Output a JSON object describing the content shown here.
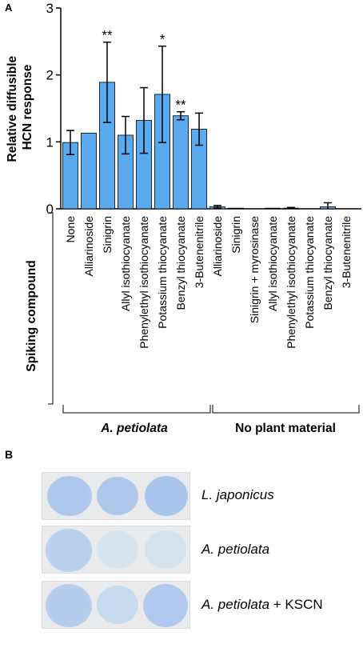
{
  "panel_a": {
    "letter": "A",
    "ylabel_line1": "Relative diffusible",
    "ylabel_line2": "HCN response",
    "xlabel": "Spiking compound",
    "group_labels": [
      "A. petiolata",
      "No plant material"
    ]
  },
  "chart_data": {
    "type": "bar",
    "ylabel": "Relative diffusible HCN response",
    "xlabel": "Spiking compound",
    "ylim": [
      0,
      3
    ],
    "yticks": [
      0,
      1,
      2,
      3
    ],
    "bar_color": "#5aaaf0",
    "groups": [
      {
        "name": "A. petiolata",
        "categories": [
          "None",
          "Alliarinoside",
          "Sinigrin",
          "Allyl isothiocyanate",
          "Phenylethyl isothiocyanate",
          "Potassium thiocyanate",
          "Benzyl thiocyanate",
          "3-Butenenitrile"
        ],
        "values": [
          0.99,
          1.13,
          1.89,
          1.1,
          1.32,
          1.71,
          1.39,
          1.19
        ],
        "errors": [
          0.18,
          0,
          0.6,
          0.28,
          0.49,
          0.72,
          0.06,
          0.24
        ],
        "significance": [
          "",
          "",
          "**",
          "",
          "",
          "*",
          "**",
          ""
        ]
      },
      {
        "name": "No plant material",
        "categories": [
          "Alliarinoside",
          "Sinigrin",
          "Sinigrin + myrosinase",
          "Allyl isothiocyanate",
          "Phenylethyl isothiocyanate",
          "Potassium thiocyanate",
          "Benzyl thiocyanate",
          "3-Butenenitrile"
        ],
        "values": [
          0.03,
          0.01,
          0,
          0.01,
          0.01,
          0,
          0.03,
          0
        ],
        "errors": [
          0.02,
          0,
          0,
          0,
          0.01,
          0,
          0.06,
          0
        ],
        "significance": [
          "",
          "",
          "",
          "",
          "",
          "",
          "",
          ""
        ]
      }
    ]
  },
  "panel_b": {
    "letter": "B",
    "rows": [
      {
        "name_italic": "L. japonicus",
        "suffix": "",
        "spot_colors": [
          "#adc7ea",
          "#adc7ea",
          "#a9c4ea"
        ]
      },
      {
        "name_italic": "A. petiolata",
        "suffix": "",
        "spot_colors": [
          "#b9d0ed",
          "#d8e5ec",
          "#d4e2ee"
        ]
      },
      {
        "name_italic": "A. petiolata",
        "suffix": " + KSCN",
        "spot_colors": [
          "#b5cdec",
          "#c8daed",
          "#b0c9ec"
        ]
      }
    ]
  }
}
